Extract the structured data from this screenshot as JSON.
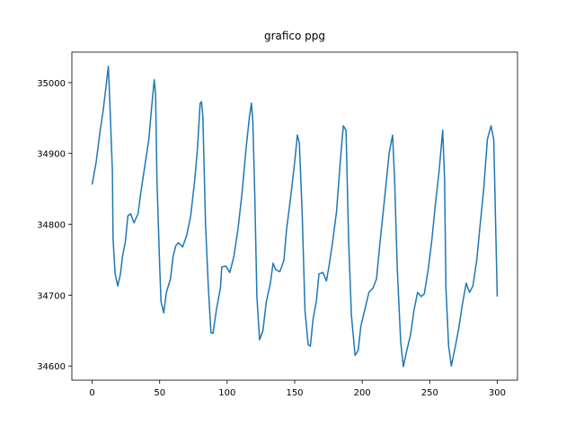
{
  "chart_data": {
    "type": "line",
    "title": "grafico ppg",
    "x": [
      0,
      3,
      6,
      8,
      10,
      12,
      13,
      15,
      15.5,
      17,
      19,
      21,
      22.5,
      24.5,
      26.5,
      28.5,
      31,
      34,
      36,
      39,
      42,
      44,
      46,
      47,
      48,
      50,
      51,
      53,
      55,
      58,
      60,
      62,
      64,
      67,
      70,
      73,
      76,
      78,
      80,
      81,
      82,
      84,
      86,
      88,
      89.5,
      92,
      95,
      96,
      99,
      102,
      105,
      108,
      111,
      114,
      116.5,
      118,
      119,
      120.5,
      122,
      124,
      126.5,
      129,
      132,
      134,
      136,
      139,
      142,
      144,
      147,
      150,
      152,
      153.5,
      155.6,
      157.6,
      160,
      161.6,
      163.6,
      166,
      168,
      171,
      173.5,
      175.5,
      178,
      181,
      183.5,
      186,
      188,
      190,
      192,
      194.7,
      197,
      199,
      202.6,
      205,
      208,
      210.6,
      213,
      216.6,
      220,
      222.5,
      224,
      226,
      228.5,
      230.5,
      233,
      235.8,
      238.4,
      241,
      243.7,
      246,
      249,
      251.7,
      254,
      257,
      259.6,
      261,
      262,
      264,
      266,
      269,
      271.5,
      274,
      277,
      279.5,
      282,
      284.8,
      287,
      290,
      292.7,
      295.4,
      297.4,
      300
    ],
    "series": [
      {
        "name": "ppg",
        "color": "#1f77b4",
        "values": [
          34856,
          34888,
          34933,
          34958,
          34990,
          35023,
          34977,
          34876,
          34780,
          34730,
          34713,
          34730,
          34755,
          34774,
          34812,
          34815,
          34802,
          34815,
          34844,
          34882,
          34920,
          34964,
          35004,
          34983,
          34863,
          34742,
          34691,
          34675,
          34704,
          34723,
          34755,
          34770,
          34774,
          34768,
          34784,
          34812,
          34863,
          34907,
          34971,
          34973,
          34952,
          34799,
          34713,
          34647,
          34646,
          34679,
          34710,
          34740,
          34741,
          34732,
          34755,
          34793,
          34844,
          34907,
          34952,
          34971,
          34945,
          34837,
          34698,
          34637,
          34650,
          34691,
          34717,
          34745,
          34736,
          34733,
          34749,
          34793,
          34838,
          34888,
          34926,
          34914,
          34812,
          34679,
          34630,
          34628,
          34666,
          34691,
          34730,
          34732,
          34720,
          34742,
          34774,
          34818,
          34882,
          34939,
          34933,
          34774,
          34672,
          34615,
          34622,
          34656,
          34685,
          34704,
          34710,
          34723,
          34771,
          34837,
          34901,
          34926,
          34863,
          34736,
          34634,
          34599,
          34622,
          34644,
          34679,
          34704,
          34698,
          34702,
          34738,
          34780,
          34825,
          34876,
          34933,
          34863,
          34710,
          34628,
          34600,
          34628,
          34653,
          34685,
          34717,
          34704,
          34713,
          34749,
          34793,
          34850,
          34920,
          34939,
          34920,
          34698
        ]
      }
    ],
    "xlim": [
      -15,
      315
    ],
    "xticks": [
      0,
      50,
      100,
      150,
      200,
      250,
      300
    ],
    "ylim": [
      34580,
      35043
    ],
    "yticks": [
      34600,
      34700,
      34800,
      34900,
      35000
    ],
    "grid": false
  }
}
